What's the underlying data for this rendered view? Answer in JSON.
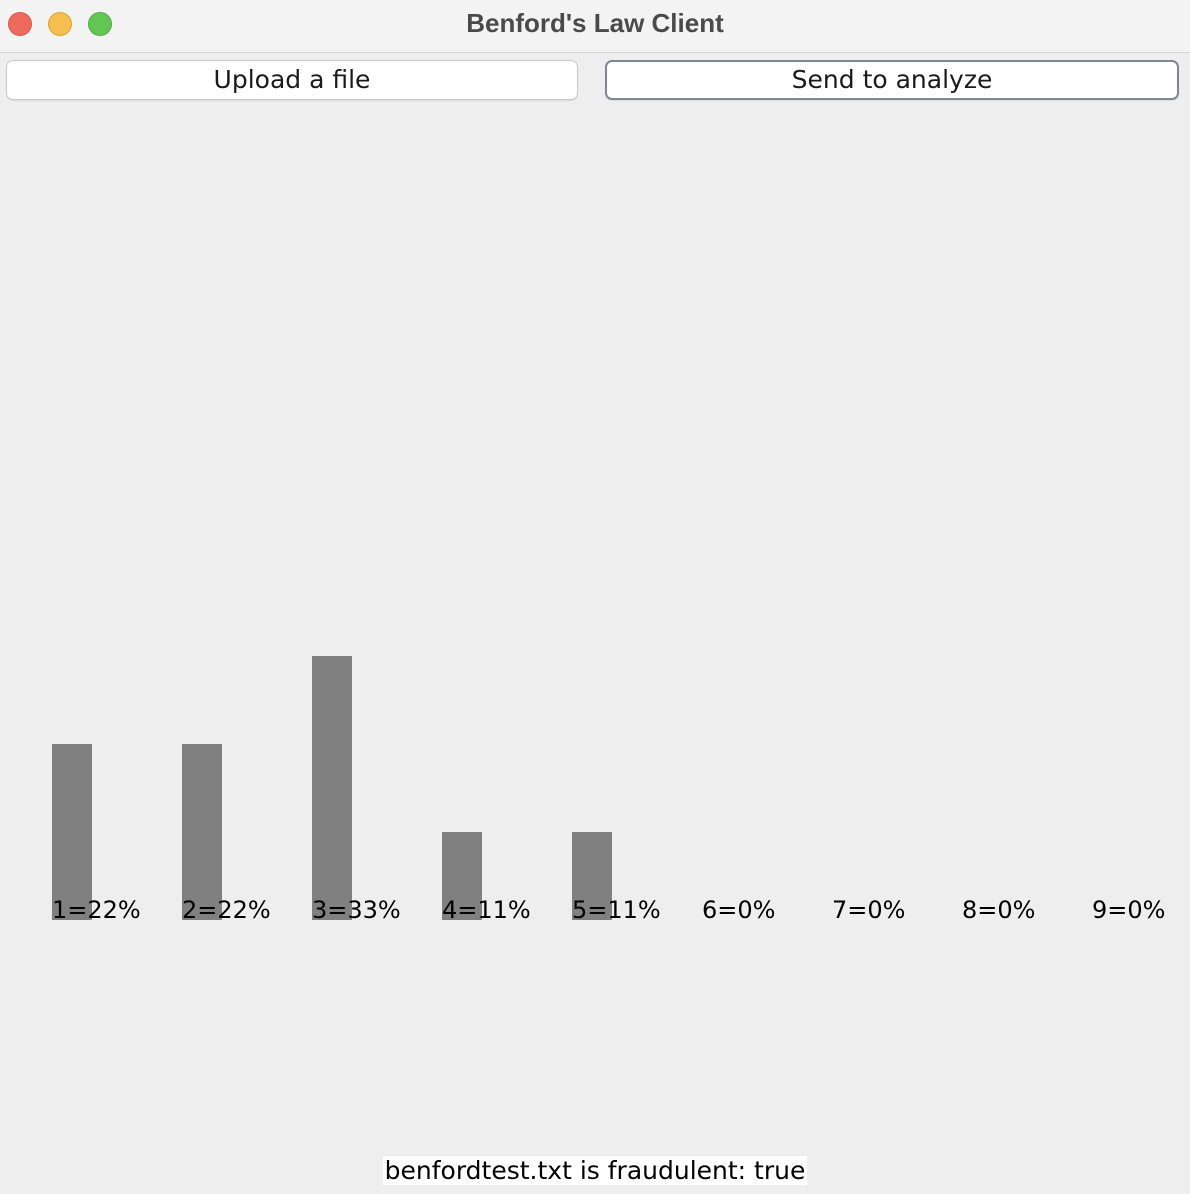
{
  "window": {
    "title": "Benford's Law Client"
  },
  "toolbar": {
    "upload_label": "Upload a file",
    "send_label": "Send to analyze"
  },
  "chart_data": {
    "type": "bar",
    "categories": [
      "1",
      "2",
      "3",
      "4",
      "5",
      "6",
      "7",
      "8",
      "9"
    ],
    "values": [
      22,
      22,
      33,
      11,
      11,
      0,
      0,
      0,
      0
    ],
    "labels": [
      "1=22%",
      "2=22%",
      "3=33%",
      "4=11%",
      "5=11%",
      "6=0%",
      "7=0%",
      "8=0%",
      "9=0%"
    ],
    "bar_color": "#808080"
  },
  "status": {
    "text": "benfordtest.txt is fraudulent: true"
  }
}
